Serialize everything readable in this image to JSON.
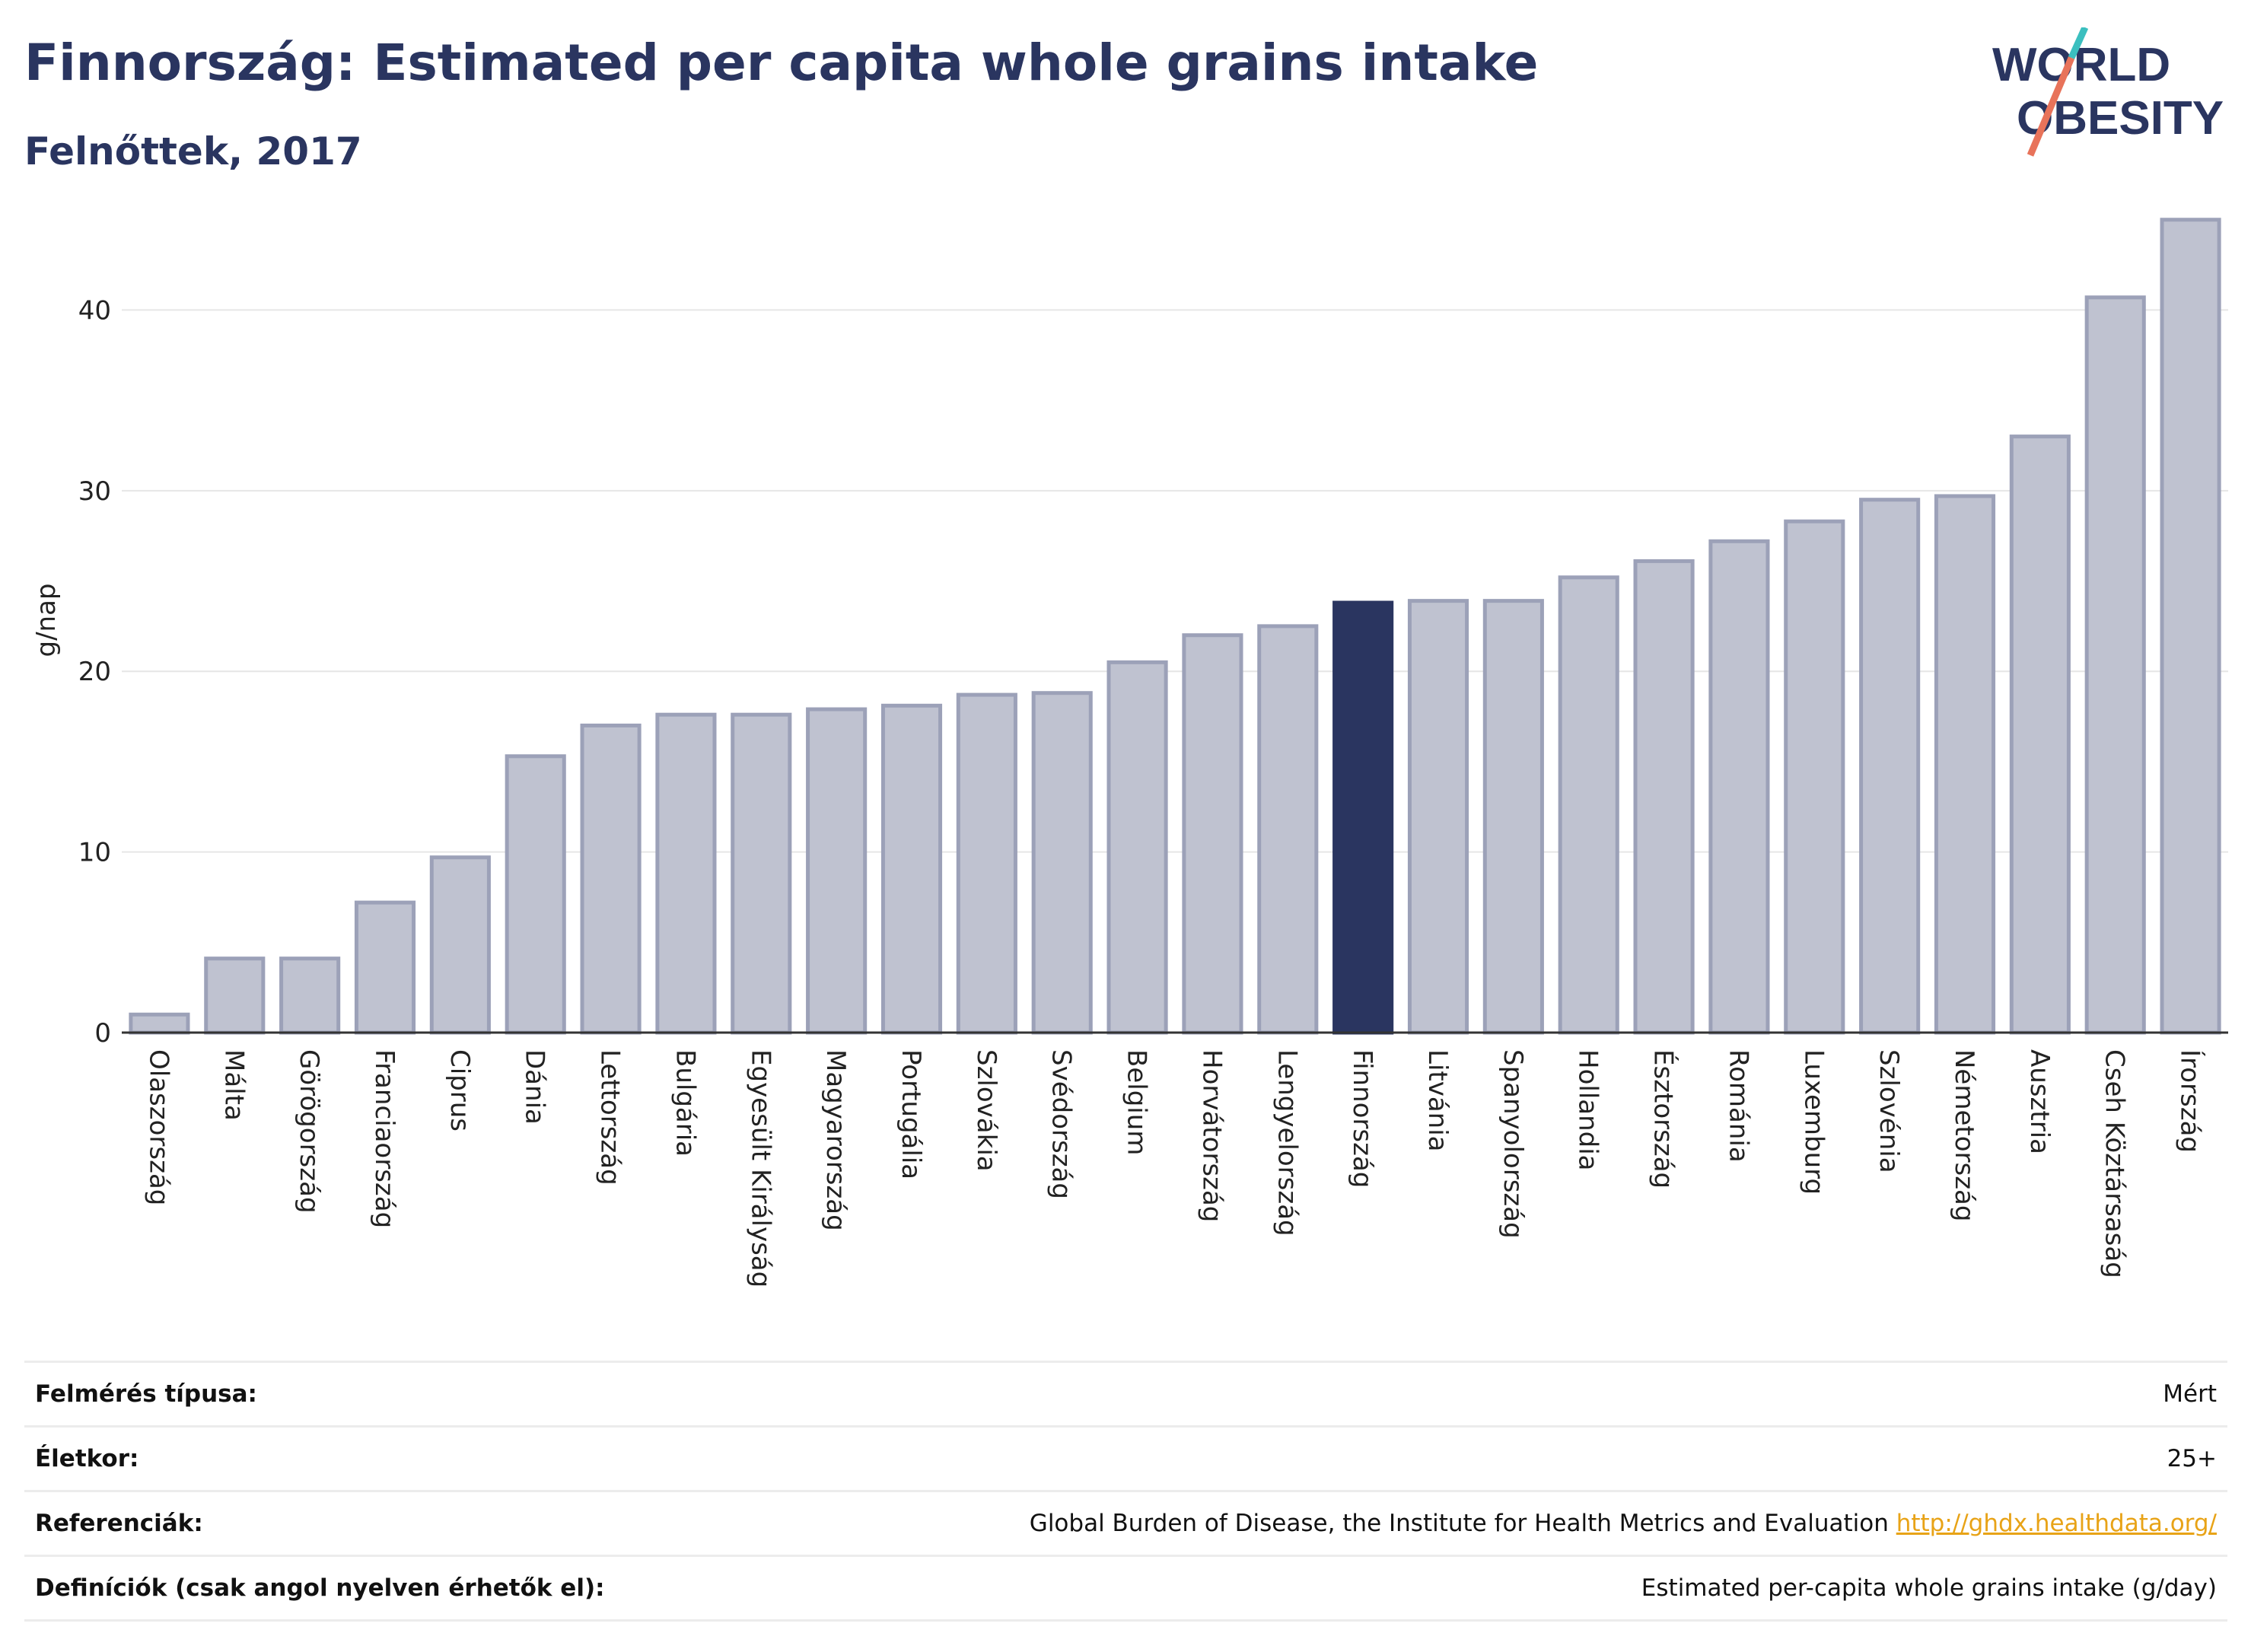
{
  "title": "Finnország: Estimated per capita whole grains intake",
  "subtitle": "Felnőttek, 2017",
  "logo": {
    "line1": "WORLD",
    "line2": "OBESITY",
    "accent": "#e8735a",
    "accent2": "#3bbfbf",
    "color": "#2a3560"
  },
  "colors": {
    "bar": "#bfc2d0",
    "bar_stroke": "#9ca1b8",
    "highlight": "#2a3560",
    "grid": "#e6e6e6",
    "axis": "#333333"
  },
  "chart_data": {
    "type": "bar",
    "ylabel": "g/nap",
    "ylim": [
      0,
      46
    ],
    "yticks": [
      0,
      10,
      20,
      30,
      40
    ],
    "highlight": "Finnország",
    "categories": [
      "Olaszország",
      "Málta",
      "Görögország",
      "Franciaország",
      "Ciprus",
      "Dánia",
      "Lettország",
      "Bulgária",
      "Egyesült Királyság",
      "Magyarország",
      "Portugália",
      "Szlovákia",
      "Svédország",
      "Belgium",
      "Horvátország",
      "Lengyelország",
      "Finnország",
      "Litvánia",
      "Spanyolország",
      "Hollandia",
      "Észtország",
      "Románia",
      "Luxemburg",
      "Szlovénia",
      "Németország",
      "Ausztria",
      "Cseh Köztársaság",
      "Írország"
    ],
    "values": [
      1.0,
      4.1,
      4.1,
      7.2,
      9.7,
      15.3,
      17.0,
      17.6,
      17.6,
      17.9,
      18.1,
      18.7,
      18.8,
      20.5,
      22.0,
      22.5,
      23.8,
      23.9,
      23.9,
      25.2,
      26.1,
      27.2,
      28.3,
      29.5,
      29.7,
      33.0,
      40.7,
      45.0
    ]
  },
  "info": [
    {
      "label": "Felmérés típusa:",
      "value": "Mért"
    },
    {
      "label": "Életkor:",
      "value": "25+"
    },
    {
      "label": "Referenciák:",
      "value": "Global Burden of Disease, the Institute for Health Metrics and Evaluation",
      "link": "http://ghdx.healthdata.org/"
    },
    {
      "label": "Definíciók (csak angol nyelven érhetők el):",
      "value": "Estimated per-capita whole grains intake (g/day)"
    }
  ]
}
